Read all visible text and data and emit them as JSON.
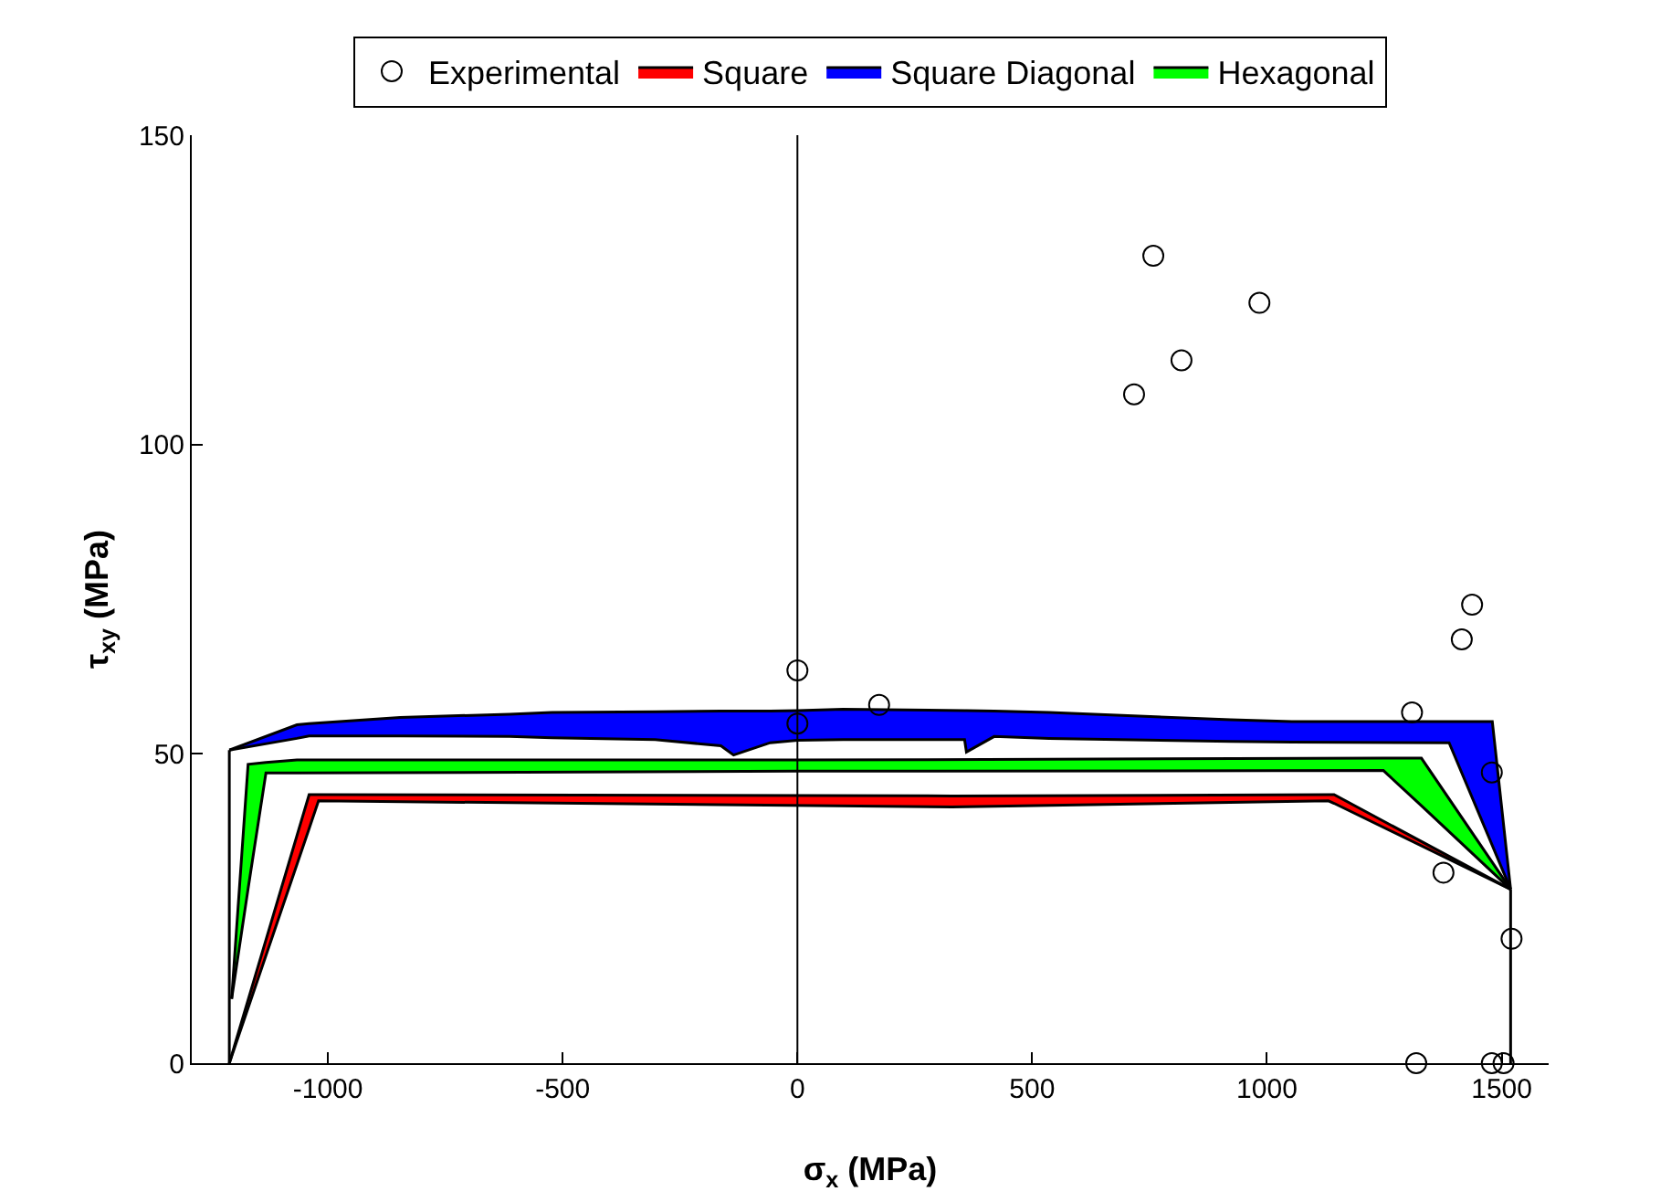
{
  "chart_data": {
    "type": "scatter",
    "xlabel": "σ$_{x}$ (MPa)",
    "ylabel": "τ$_{xy}$ (MPa)",
    "xlim": [
      -1290,
      1600
    ],
    "xticks": [
      -1000,
      -500,
      0,
      500,
      1000,
      1500
    ],
    "ylim": [
      0,
      150
    ],
    "yticks": [
      0,
      50,
      100,
      150
    ],
    "grid": false,
    "legend": "top",
    "ref_lines": [
      {
        "axis": "x",
        "value": 0,
        "color": "#000000"
      }
    ],
    "series": [
      {
        "name": "Experimental",
        "marker": "circle",
        "color": "#000000",
        "x": [
          0,
          0,
          174,
          717,
          758,
          818,
          984,
          1437,
          1415,
          1309,
          1479,
          1376,
          1521,
          1318,
          1479,
          1504
        ],
        "values": [
          63.5,
          54.9,
          57.9,
          108.1,
          130.5,
          113.6,
          122.9,
          74.1,
          68.5,
          56.7,
          47,
          30.8,
          20.1,
          0,
          0,
          0
        ]
      },
      {
        "type": "line",
        "color": "#000000",
        "x": [
          -1210,
          -1040,
          -1020,
          329,
          1131,
          1143,
          1519
        ],
        "values": [
          0,
          37.9,
          42.4,
          41.4,
          42.4,
          42,
          28.1
        ]
      },
      {
        "name": "Square",
        "type": "area",
        "color": "#ff0000",
        "x": [
          -1210,
          -1040,
          -1020,
          329,
          1131,
          1143,
          1519
        ],
        "values": [
          0,
          43.4,
          43.4,
          43.2,
          43.4,
          43.4,
          28.1
        ]
      },
      {
        "type": "line",
        "color": "#000000",
        "x": [
          -1210,
          -1066,
          -1040,
          -846,
          -613,
          -523,
          -303,
          -163,
          -136,
          -58,
          0,
          97,
          356,
          360,
          419,
          536,
          923,
          1053,
          1388,
          1480,
          1519
        ],
        "values": [
          50.6,
          52.5,
          52.9,
          52.9,
          52.8,
          52.6,
          52.3,
          51.3,
          49.8,
          51.8,
          52.2,
          52.3,
          52.3,
          50.3,
          52.8,
          52.5,
          52,
          51.9,
          51.8,
          35.2,
          28.1
        ]
      },
      {
        "name": "Square Diagonal",
        "type": "area",
        "color": "#0000ff",
        "x": [
          -1210,
          -1066,
          -1040,
          -846,
          -613,
          -523,
          -303,
          -163,
          -136,
          -58,
          0,
          97,
          356,
          360,
          419,
          536,
          923,
          1053,
          1388,
          1480,
          1519
        ],
        "values": [
          50.6,
          54.7,
          54.9,
          55.9,
          56.4,
          56.7,
          56.8,
          56.9,
          56.9,
          56.9,
          57,
          57.2,
          57,
          57,
          56.9,
          56.7,
          55.5,
          55.2,
          55.2,
          55.2,
          28.1
        ]
      },
      {
        "type": "line",
        "color": "#000000",
        "x": [
          -1205,
          -1170,
          -1132,
          -1066,
          -5,
          1248,
          1329,
          1519
        ],
        "values": [
          10.4,
          28.2,
          46.9,
          46.9,
          47.2,
          47.3,
          41.6,
          28.1
        ]
      },
      {
        "name": "Hexagonal",
        "type": "area",
        "color": "#00ff00",
        "x": [
          -1205,
          -1170,
          -1132,
          -1066,
          -5,
          1248,
          1329,
          1519
        ],
        "values": [
          10.4,
          48.3,
          48.6,
          49,
          49,
          49.3,
          49.3,
          28.1
        ]
      },
      {
        "type": "line",
        "color": "#000000",
        "x": [
          -1210,
          -1210,
          null,
          1519,
          1519
        ],
        "values": [
          0,
          50.6,
          null,
          28.1,
          0
        ]
      }
    ]
  }
}
